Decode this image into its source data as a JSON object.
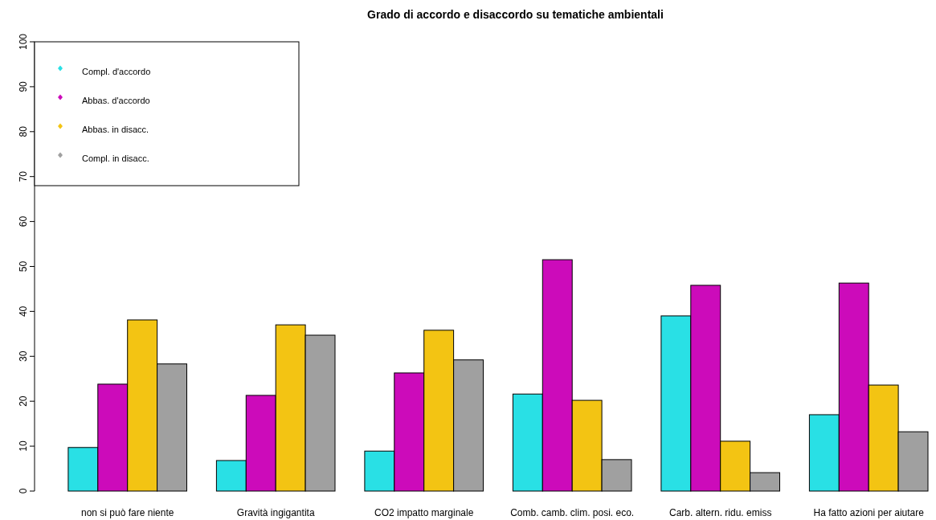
{
  "chart_data": {
    "type": "bar",
    "title": "Grado di accordo e disaccordo su tematiche ambientali",
    "categories": [
      "non si può fare niente",
      "Gravità ingigantita",
      "CO2 impatto marginale",
      "Comb. camb. clim. posi. eco.",
      "Carb. altern. ridu. emiss",
      "Ha fatto azioni per aiutare"
    ],
    "series": [
      {
        "name": "Compl. d'accordo",
        "color": "#29e0e5",
        "values": [
          9.7,
          6.8,
          8.9,
          21.6,
          39.0,
          17.0
        ]
      },
      {
        "name": "Abbas. d'accordo",
        "color": "#cc0bba",
        "values": [
          23.8,
          21.3,
          26.3,
          51.5,
          45.8,
          46.3
        ]
      },
      {
        "name": "Abbas. in disacc.",
        "color": "#f3c413",
        "values": [
          38.1,
          37.0,
          35.8,
          20.2,
          11.1,
          23.6
        ]
      },
      {
        "name": "Compl. in disacc.",
        "color": "#a0a0a0",
        "values": [
          28.3,
          34.7,
          29.2,
          7.0,
          4.1,
          13.2
        ]
      }
    ],
    "ylim": [
      0,
      100
    ],
    "yticks": [
      0,
      10,
      20,
      30,
      40,
      50,
      60,
      70,
      80,
      90,
      100
    ],
    "grid": false,
    "legend": "top left"
  }
}
